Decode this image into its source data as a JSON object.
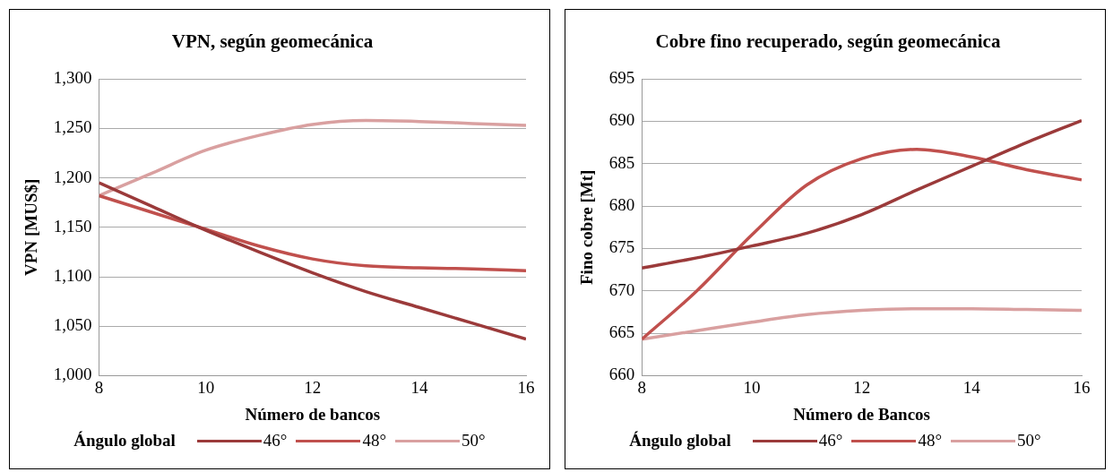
{
  "chart_data": [
    {
      "type": "line",
      "title": "VPN, según geomecánica",
      "xlabel": "Número de bancos",
      "ylabel": "VPN [MUS$]",
      "legend_title": "Ángulo global",
      "legend": "bottom",
      "grid": "y",
      "xlim": [
        8,
        16
      ],
      "xticks": [
        8,
        10,
        12,
        14,
        16
      ],
      "ylim": [
        1000,
        1300
      ],
      "yticks": [
        {
          "value": 1000,
          "label": "1,000"
        },
        {
          "value": 1050,
          "label": "1,050"
        },
        {
          "value": 1100,
          "label": "1,100"
        },
        {
          "value": 1150,
          "label": "1,150"
        },
        {
          "value": 1200,
          "label": "1,200"
        },
        {
          "value": 1250,
          "label": "1,250"
        },
        {
          "value": 1300,
          "label": "1,300"
        }
      ],
      "x": [
        8,
        9,
        10,
        11,
        12,
        13,
        14,
        15,
        16
      ],
      "series": [
        {
          "name": "46°",
          "color": "#9b3a3a",
          "values": [
            1195,
            1171,
            1147,
            1125,
            1104,
            1085,
            1069,
            1053,
            1037
          ]
        },
        {
          "name": "48°",
          "color": "#c0504d",
          "values": [
            1182,
            1165,
            1148,
            1131,
            1118,
            1111,
            1109,
            1108,
            1106
          ]
        },
        {
          "name": "50°",
          "color": "#d9a0a0",
          "values": [
            1182,
            1205,
            1228,
            1243,
            1254,
            1258,
            1257,
            1255,
            1253
          ]
        }
      ]
    },
    {
      "type": "line",
      "title": "Cobre fino recuperado, según geomecánica",
      "xlabel": "Número de Bancos",
      "ylabel": "Fino cobre [Mt]",
      "legend_title": "Ángulo global",
      "legend": "bottom",
      "grid": "y",
      "xlim": [
        8,
        16
      ],
      "xticks": [
        8,
        10,
        12,
        14,
        16
      ],
      "ylim": [
        660,
        695
      ],
      "yticks": [
        660,
        665,
        670,
        675,
        680,
        685,
        690,
        695
      ],
      "x": [
        8,
        9,
        10,
        11,
        12,
        13,
        14,
        15,
        16
      ],
      "series": [
        {
          "name": "46°",
          "color": "#9b3a3a",
          "values": [
            672.7,
            673.9,
            675.3,
            676.8,
            679.0,
            681.9,
            684.7,
            687.5,
            690.1
          ]
        },
        {
          "name": "48°",
          "color": "#c0504d",
          "values": [
            664.3,
            670.0,
            676.6,
            682.5,
            685.6,
            686.7,
            685.8,
            684.3,
            683.1
          ]
        },
        {
          "name": "50°",
          "color": "#d9a0a0",
          "values": [
            664.3,
            665.3,
            666.3,
            667.2,
            667.7,
            667.9,
            667.9,
            667.8,
            667.7
          ]
        }
      ]
    }
  ]
}
